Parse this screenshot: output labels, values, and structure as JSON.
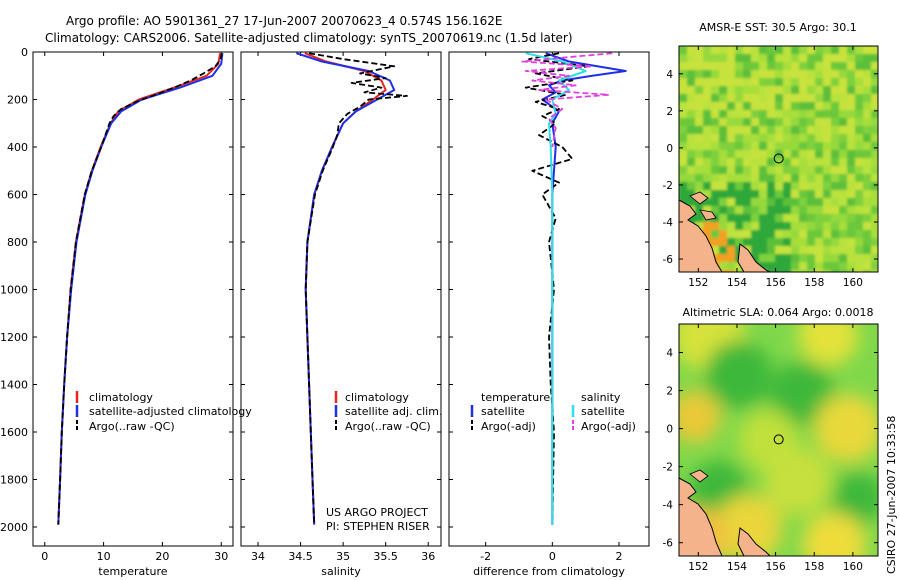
{
  "header": {
    "line1": "Argo profile: AO 5901361_27 17-Jun-2007 20070623_4 0.574S 156.162E",
    "line2": "Climatology: CARS2006. Satellite-adjusted climatology: synTS_20070619.nc (1.5d later)"
  },
  "side_label": "CSIRO 27-Jun-2007 10:33:58",
  "credit": {
    "line1": "US ARGO PROJECT",
    "line2": "PI: STEPHEN RISER"
  },
  "colors": {
    "climatology": "#e8241c",
    "satellite": "#1f2fe8",
    "argo": "#000000",
    "cyan": "#33dde8",
    "magenta": "#e040e0"
  },
  "chart_data": [
    {
      "id": "temperature",
      "type": "line",
      "xlabel": "temperature",
      "ylabel": "",
      "xlim": [
        -2,
        32
      ],
      "ylim": [
        2080,
        0
      ],
      "xticks": [
        0,
        10,
        20,
        30
      ],
      "yticks": [
        0,
        200,
        400,
        600,
        800,
        1000,
        1200,
        1400,
        1600,
        1800,
        2000
      ],
      "legend": [
        "climatology",
        "satellite-adjusted climatology",
        "Argo(..raw -QC)"
      ],
      "series": [
        {
          "name": "climatology",
          "style": "solid",
          "color": "#e8241c",
          "depth": [
            5,
            50,
            100,
            150,
            200,
            250,
            300,
            400,
            500,
            600,
            800,
            1000,
            1200,
            1400,
            1600,
            1800,
            1990
          ],
          "values": [
            29.8,
            29.5,
            27.5,
            22.0,
            16.0,
            12.5,
            11.2,
            9.5,
            8.0,
            6.8,
            5.3,
            4.4,
            3.8,
            3.3,
            2.9,
            2.6,
            2.3
          ]
        },
        {
          "name": "satellite-adjusted climatology",
          "style": "solid",
          "color": "#1f2fe8",
          "depth": [
            5,
            50,
            100,
            150,
            200,
            250,
            300,
            400,
            500,
            600,
            800,
            1000,
            1200,
            1400,
            1600,
            1800,
            1990
          ],
          "values": [
            30.2,
            30.0,
            28.5,
            23.0,
            16.5,
            13.0,
            11.3,
            9.6,
            8.1,
            6.9,
            5.4,
            4.5,
            3.8,
            3.3,
            2.9,
            2.6,
            2.3
          ]
        },
        {
          "name": "Argo(..raw -QC)",
          "style": "dashed",
          "color": "#000000",
          "depth": [
            5,
            30,
            60,
            90,
            120,
            150,
            180,
            210,
            240,
            270,
            300,
            400,
            500,
            600,
            800,
            1000,
            1200,
            1400,
            1600,
            1800,
            1990
          ],
          "values": [
            30.1,
            29.9,
            29.0,
            27.0,
            24.8,
            22.0,
            18.8,
            15.5,
            13.0,
            11.7,
            11.0,
            9.6,
            8.0,
            6.8,
            5.3,
            4.4,
            3.8,
            3.3,
            2.9,
            2.6,
            2.3
          ]
        }
      ]
    },
    {
      "id": "salinity",
      "type": "line",
      "xlabel": "salinity",
      "ylabel": "",
      "xlim": [
        33.8,
        36.15
      ],
      "ylim": [
        2080,
        0
      ],
      "xticks": [
        34,
        34.5,
        35,
        35.5,
        36
      ],
      "yticks": [
        0,
        200,
        400,
        600,
        800,
        1000,
        1200,
        1400,
        1600,
        1800,
        2000
      ],
      "legend": [
        "climatology",
        "satellite adj. clim.",
        "Argo(..raw -QC)"
      ],
      "series": [
        {
          "name": "climatology",
          "style": "solid",
          "color": "#e8241c",
          "depth": [
            5,
            40,
            80,
            120,
            160,
            200,
            250,
            300,
            400,
            500,
            600,
            800,
            1000,
            1200,
            1400,
            1600,
            1800,
            1990
          ],
          "values": [
            34.55,
            34.8,
            35.25,
            35.45,
            35.5,
            35.35,
            35.15,
            35.0,
            34.87,
            34.75,
            34.66,
            34.58,
            34.56,
            34.58,
            34.6,
            34.62,
            34.64,
            34.66
          ]
        },
        {
          "name": "satellite adj. clim.",
          "style": "solid",
          "color": "#1f2fe8",
          "depth": [
            5,
            40,
            80,
            120,
            160,
            200,
            250,
            300,
            400,
            500,
            600,
            800,
            1000,
            1200,
            1400,
            1600,
            1800,
            1990
          ],
          "values": [
            34.45,
            34.75,
            35.3,
            35.55,
            35.6,
            35.4,
            35.15,
            35.0,
            34.87,
            34.75,
            34.66,
            34.58,
            34.56,
            34.58,
            34.6,
            34.62,
            34.64,
            34.66
          ]
        },
        {
          "name": "Argo(..raw -QC)",
          "style": "dashed",
          "color": "#000000",
          "depth": [
            5,
            30,
            60,
            90,
            110,
            130,
            150,
            170,
            185,
            200,
            230,
            260,
            300,
            350,
            400,
            500,
            600,
            800,
            1000,
            1200,
            1400,
            1600,
            1800,
            1990
          ],
          "values": [
            34.6,
            35.0,
            35.6,
            35.2,
            35.5,
            35.1,
            35.45,
            35.25,
            35.75,
            35.3,
            35.2,
            35.05,
            34.95,
            34.93,
            34.88,
            34.76,
            34.67,
            34.58,
            34.56,
            34.58,
            34.6,
            34.62,
            34.64,
            34.66
          ]
        }
      ]
    },
    {
      "id": "difference",
      "type": "line",
      "xlabel": "difference from climatology",
      "ylabel": "",
      "xlim": [
        -3.1,
        2.9
      ],
      "ylim": [
        2080,
        0
      ],
      "xticks": [
        -2,
        0,
        2
      ],
      "yticks": [
        0,
        200,
        400,
        600,
        800,
        1000,
        1200,
        1400,
        1600,
        1800,
        2000
      ],
      "legend_titles": [
        "temperature",
        "salinity"
      ],
      "legend": [
        "satellite",
        "Argo(-adj)",
        "satellite",
        "Argo(-adj)"
      ],
      "series": [
        {
          "name": "temperature satellite",
          "style": "solid",
          "color": "#1f2fe8",
          "depth": [
            5,
            40,
            80,
            100,
            120,
            140,
            170,
            200,
            250,
            300,
            400,
            600,
            1000,
            1400,
            1990
          ],
          "values": [
            -0.2,
            0.5,
            2.2,
            1.2,
            0.3,
            -0.1,
            0.1,
            -0.3,
            0.2,
            0.0,
            0.1,
            0.0,
            0.0,
            0.0,
            0.0
          ]
        },
        {
          "name": "temperature Argo(-adj)",
          "style": "dashed",
          "color": "#000000",
          "depth": [
            5,
            30,
            60,
            90,
            120,
            150,
            180,
            210,
            240,
            270,
            300,
            350,
            400,
            450,
            500,
            550,
            600,
            700,
            800,
            1000,
            1200,
            1400,
            1600,
            1990
          ],
          "values": [
            0.2,
            -0.7,
            1.1,
            -0.5,
            0.6,
            -0.8,
            0.4,
            -0.5,
            0.2,
            -0.3,
            0.1,
            -0.4,
            0.3,
            0.6,
            -0.6,
            0.2,
            -0.3,
            0.1,
            -0.1,
            0.05,
            -0.1,
            -0.05,
            0.05,
            0.0
          ]
        },
        {
          "name": "salinity satellite",
          "style": "solid",
          "color": "#33dde8",
          "depth": [
            5,
            40,
            80,
            120,
            160,
            200,
            260,
            300,
            400,
            600,
            1000,
            1400,
            1990
          ],
          "values": [
            -0.8,
            0.3,
            1.0,
            0.2,
            0.5,
            0.0,
            0.1,
            -0.1,
            -0.05,
            0.0,
            0.0,
            0.0,
            0.0
          ]
        },
        {
          "name": "salinity Argo(-adj)",
          "style": "dashed",
          "color": "#e040e0",
          "depth": [
            5,
            20,
            40,
            60,
            80,
            100,
            120,
            140,
            160,
            180,
            200,
            240,
            280,
            320,
            400
          ],
          "values": [
            1.8,
            0.6,
            -0.9,
            1.2,
            -0.8,
            0.5,
            -0.6,
            0.7,
            -0.4,
            1.7,
            -0.2,
            0.3,
            -0.1,
            0.1,
            0.0
          ]
        }
      ]
    },
    {
      "id": "sst_map",
      "type": "heatmap",
      "title": "AMSR-E SST: 30.5 Argo: 30.1",
      "xlim": [
        151,
        161.3
      ],
      "ylim": [
        -6.7,
        5.5
      ],
      "xticks": [
        152,
        154,
        156,
        158,
        160
      ],
      "yticks": [
        4,
        2,
        0,
        -2,
        -4,
        -6
      ],
      "marker": [
        156.16,
        -0.57
      ]
    },
    {
      "id": "sla_map",
      "type": "heatmap",
      "title": "Altimetric SLA: 0.064 Argo: 0.0018",
      "xlim": [
        151,
        161.3
      ],
      "ylim": [
        -6.7,
        5.5
      ],
      "xticks": [
        152,
        154,
        156,
        158,
        160
      ],
      "yticks": [
        4,
        2,
        0,
        -2,
        -4,
        -6
      ],
      "marker": [
        156.16,
        -0.57
      ]
    }
  ]
}
